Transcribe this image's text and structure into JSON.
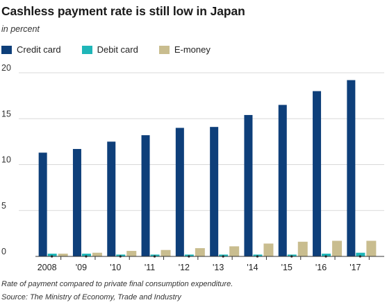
{
  "chart_data": {
    "type": "bar",
    "title": "Cashless payment rate is still low in Japan",
    "subtitle": "in percent",
    "categories": [
      "2008",
      "'09",
      "'10",
      "'11",
      "'12",
      "'13",
      "'14",
      "'15",
      "'16",
      "'17"
    ],
    "series": [
      {
        "name": "Credit card",
        "color": "#0e3f7a",
        "values": [
          11.3,
          11.7,
          12.5,
          13.2,
          14.0,
          14.1,
          15.4,
          16.5,
          18.0,
          19.2
        ]
      },
      {
        "name": "Debit card",
        "color": "#1fb6b8",
        "values": [
          0.3,
          0.3,
          0.2,
          0.2,
          0.2,
          0.2,
          0.2,
          0.2,
          0.3,
          0.4
        ]
      },
      {
        "name": "E-money",
        "color": "#c9bd8f",
        "values": [
          0.3,
          0.4,
          0.6,
          0.7,
          0.9,
          1.1,
          1.4,
          1.6,
          1.7,
          1.7
        ]
      }
    ],
    "yticks": [
      0,
      5,
      10,
      15,
      20
    ],
    "ylim": [
      0,
      20
    ],
    "grid": true,
    "legend": "top-left",
    "xlabel": "",
    "ylabel": ""
  },
  "footnote": "Rate of payment compared to private final consumption expenditure.",
  "source": "Source: The Ministry of Economy, Trade and Industry"
}
